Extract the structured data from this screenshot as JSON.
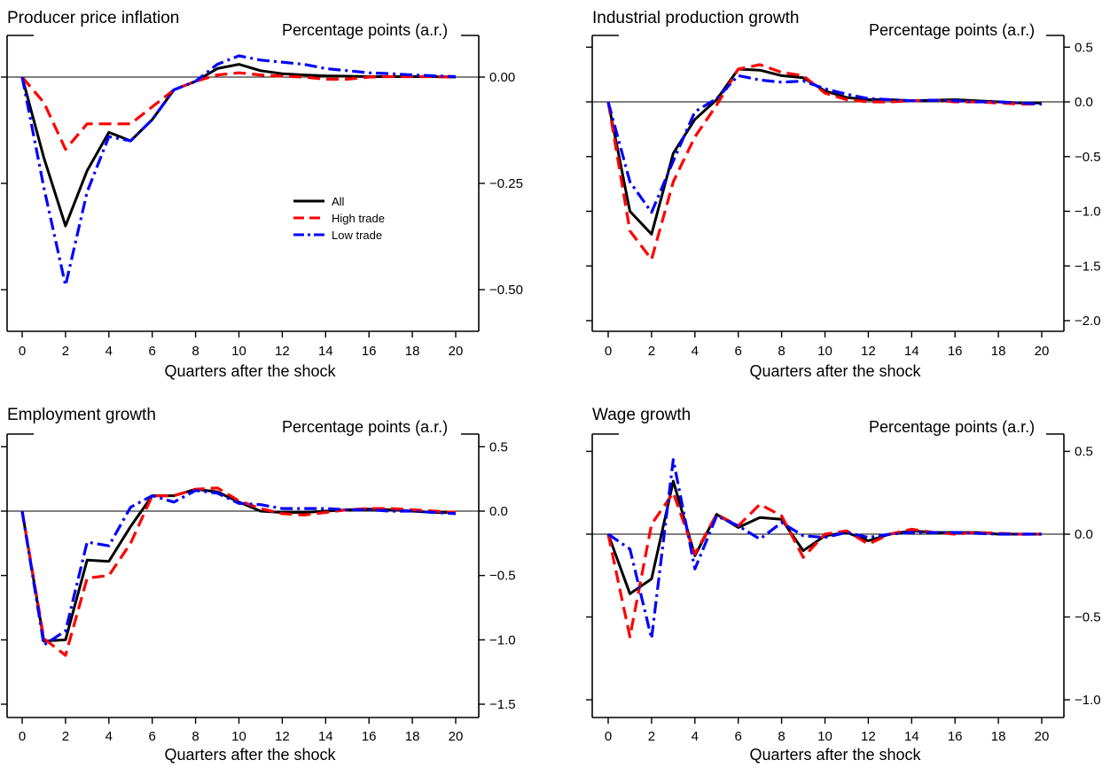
{
  "colors": {
    "all": "#000000",
    "high": "#ff0000",
    "low": "#0000ff"
  },
  "legend_labels": {
    "all": "All",
    "high": "High trade",
    "low": "Low trade"
  },
  "chart_data": [
    {
      "type": "line",
      "title": "Producer price inflation",
      "unit_label": "Percentage points (a.r.)",
      "xlabel": "Quarters after the shock",
      "x": [
        0,
        1,
        2,
        3,
        4,
        5,
        6,
        7,
        8,
        9,
        10,
        11,
        12,
        13,
        14,
        15,
        16,
        17,
        18,
        19,
        20
      ],
      "xticks": [
        "0",
        "2",
        "4",
        "6",
        "8",
        "10",
        "12",
        "14",
        "16",
        "18",
        "20"
      ],
      "ylim": [
        -0.6,
        0.1
      ],
      "yticks": [
        0.0,
        -0.25,
        -0.5
      ],
      "ytick_labels": [
        "0.00",
        "−0.25",
        "−0.50"
      ],
      "legend": "center-right",
      "series": [
        {
          "name": "All",
          "key": "all",
          "values": [
            0,
            -0.19,
            -0.35,
            -0.22,
            -0.13,
            -0.15,
            -0.1,
            -0.03,
            -0.01,
            0.02,
            0.03,
            0.015,
            0.008,
            0.005,
            0.003,
            0.002,
            0.001,
            0.001,
            0.001,
            0.001,
            0
          ]
        },
        {
          "name": "High trade",
          "key": "high",
          "values": [
            0,
            -0.06,
            -0.17,
            -0.11,
            -0.11,
            -0.11,
            -0.07,
            -0.03,
            -0.01,
            0.005,
            0.01,
            0.005,
            0.002,
            0,
            -0.005,
            -0.005,
            0,
            0.001,
            0.001,
            0.001,
            0
          ]
        },
        {
          "name": "Low trade",
          "key": "low",
          "values": [
            0,
            -0.26,
            -0.49,
            -0.27,
            -0.14,
            -0.15,
            -0.1,
            -0.03,
            -0.01,
            0.03,
            0.05,
            0.04,
            0.035,
            0.03,
            0.02,
            0.015,
            0.01,
            0.008,
            0.005,
            0.003,
            0.001
          ]
        }
      ]
    },
    {
      "type": "line",
      "title": "Industrial production growth",
      "unit_label": "Percentage points (a.r.)",
      "xlabel": "Quarters after the shock",
      "x": [
        0,
        1,
        2,
        3,
        4,
        5,
        6,
        7,
        8,
        9,
        10,
        11,
        12,
        13,
        14,
        15,
        16,
        17,
        18,
        19,
        20
      ],
      "xticks": [
        "0",
        "2",
        "4",
        "6",
        "8",
        "10",
        "12",
        "14",
        "16",
        "18",
        "20"
      ],
      "ylim": [
        -2.05,
        0.6
      ],
      "yticks": [
        0.5,
        0.0,
        -0.5,
        -1.0,
        -1.5,
        -2.0
      ],
      "ytick_labels": [
        "0.5",
        "0.0",
        "−0.5",
        "−1.0",
        "−1.5",
        "−2.0"
      ],
      "series": [
        {
          "name": "All",
          "key": "all",
          "values": [
            0,
            -1.0,
            -1.21,
            -0.47,
            -0.16,
            0.02,
            0.3,
            0.29,
            0.24,
            0.22,
            0.1,
            0.04,
            0.02,
            0.02,
            0.01,
            0.015,
            0.02,
            0.01,
            0,
            -0.01,
            -0.01
          ]
        },
        {
          "name": "High trade",
          "key": "high",
          "values": [
            0,
            -1.18,
            -1.44,
            -0.73,
            -0.32,
            -0.03,
            0.3,
            0.34,
            0.27,
            0.24,
            0.08,
            0.02,
            0,
            0,
            0.01,
            0.015,
            0,
            0,
            -0.01,
            -0.02,
            -0.02
          ]
        },
        {
          "name": "Low trade",
          "key": "low",
          "values": [
            0,
            -0.73,
            -1.01,
            -0.54,
            -0.09,
            0.03,
            0.24,
            0.2,
            0.18,
            0.19,
            0.12,
            0.07,
            0.03,
            0.02,
            0.01,
            0.015,
            0.01,
            0,
            0,
            -0.01,
            -0.02
          ]
        }
      ]
    },
    {
      "type": "line",
      "title": "Employment growth",
      "unit_label": "Percentage points (a.r.)",
      "xlabel": "Quarters after the shock",
      "x": [
        0,
        1,
        2,
        3,
        4,
        5,
        6,
        7,
        8,
        9,
        10,
        11,
        12,
        13,
        14,
        15,
        16,
        17,
        18,
        19,
        20
      ],
      "xticks": [
        "0",
        "2",
        "4",
        "6",
        "8",
        "10",
        "12",
        "14",
        "16",
        "18",
        "20"
      ],
      "ylim": [
        -1.6,
        0.6
      ],
      "yticks": [
        0.5,
        0.0,
        -0.5,
        -1.0,
        -1.5
      ],
      "ytick_labels": [
        "0.5",
        "0.0",
        "−0.5",
        "−1.0",
        "−1.5"
      ],
      "series": [
        {
          "name": "All",
          "key": "all",
          "values": [
            0,
            -1.01,
            -1.0,
            -0.38,
            -0.39,
            -0.12,
            0.12,
            0.12,
            0.17,
            0.15,
            0.07,
            0,
            -0.01,
            -0.01,
            0,
            0.01,
            0.015,
            0.01,
            0,
            -0.01,
            -0.01
          ]
        },
        {
          "name": "High trade",
          "key": "high",
          "values": [
            0,
            -0.99,
            -1.12,
            -0.52,
            -0.5,
            -0.25,
            0.12,
            0.12,
            0.17,
            0.18,
            0.08,
            0.02,
            -0.02,
            -0.03,
            -0.01,
            0.01,
            0.02,
            0.02,
            0.01,
            0,
            -0.01
          ]
        },
        {
          "name": "Low trade",
          "key": "low",
          "values": [
            0,
            -1.04,
            -0.93,
            -0.24,
            -0.27,
            0.03,
            0.12,
            0.07,
            0.16,
            0.14,
            0.06,
            0.05,
            0.02,
            0.02,
            0.02,
            0.01,
            0.01,
            0,
            0,
            -0.01,
            -0.02
          ]
        }
      ]
    },
    {
      "type": "line",
      "title": "Wage growth",
      "unit_label": "Percentage points (a.r.)",
      "xlabel": "Quarters after the shock",
      "x": [
        0,
        1,
        2,
        3,
        4,
        5,
        6,
        7,
        8,
        9,
        10,
        11,
        12,
        13,
        14,
        15,
        16,
        17,
        18,
        19,
        20
      ],
      "xticks": [
        "0",
        "2",
        "4",
        "6",
        "8",
        "10",
        "12",
        "14",
        "16",
        "18",
        "20"
      ],
      "ylim": [
        -1.1,
        0.6
      ],
      "yticks": [
        0.5,
        0.0,
        -0.5,
        -1.0
      ],
      "ytick_labels": [
        "0.5",
        "0.0",
        "−0.5",
        "−1.0"
      ],
      "series": [
        {
          "name": "All",
          "key": "all",
          "values": [
            0,
            -0.36,
            -0.27,
            0.32,
            -0.13,
            0.12,
            0.04,
            0.1,
            0.09,
            -0.1,
            -0.01,
            0.01,
            -0.04,
            0,
            0.02,
            0.01,
            0.01,
            0.01,
            0,
            0,
            0
          ]
        },
        {
          "name": "High trade",
          "key": "high",
          "values": [
            0,
            -0.62,
            0.06,
            0.25,
            -0.12,
            0.12,
            0.05,
            0.18,
            0.11,
            -0.14,
            0,
            0.02,
            -0.06,
            0,
            0.03,
            0.01,
            0,
            0.01,
            0.005,
            0,
            0
          ]
        },
        {
          "name": "Low trade",
          "key": "low",
          "values": [
            0,
            -0.09,
            -0.63,
            0.45,
            -0.21,
            0.11,
            0.05,
            -0.03,
            0.07,
            -0.01,
            -0.02,
            0.01,
            -0.02,
            0,
            0.01,
            0.01,
            0.01,
            0.005,
            0,
            0,
            0
          ]
        }
      ]
    }
  ]
}
